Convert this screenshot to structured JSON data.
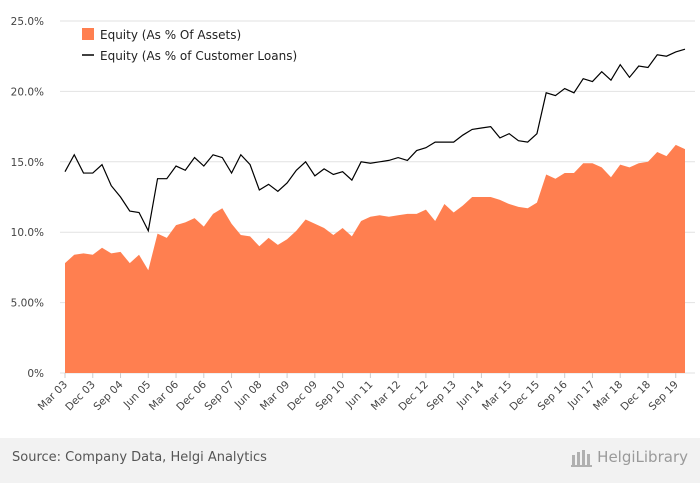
{
  "chart_data": {
    "type": "area",
    "y_ticks": [
      "0%",
      "5.00%",
      "10.0%",
      "15.0%",
      "20.0%",
      "25.0%"
    ],
    "y_tick_values": [
      0,
      5,
      10,
      15,
      20,
      25
    ],
    "ylim": [
      0,
      25
    ],
    "grid": true,
    "legend_position": "top-left",
    "x_tick_labels": [
      "Mar 03",
      "Dec 03",
      "Sep 04",
      "Jun 05",
      "Mar 06",
      "Dec 06",
      "Sep 07",
      "Jun 08",
      "Mar 09",
      "Dec 09",
      "Sep 10",
      "Jun 11",
      "Mar 12",
      "Dec 12",
      "Sep 13",
      "Jun 14",
      "Mar 15",
      "Dec 15",
      "Sep 16",
      "Jun 17",
      "Mar 18",
      "Dec 18",
      "Sep 19"
    ],
    "x": [
      "Mar 03",
      "Jun 03",
      "Sep 03",
      "Dec 03",
      "Mar 04",
      "Jun 04",
      "Sep 04",
      "Dec 04",
      "Mar 05",
      "Jun 05",
      "Sep 05",
      "Dec 05",
      "Mar 06",
      "Jun 06",
      "Sep 06",
      "Dec 06",
      "Mar 07",
      "Jun 07",
      "Sep 07",
      "Dec 07",
      "Mar 08",
      "Jun 08",
      "Sep 08",
      "Dec 08",
      "Mar 09",
      "Jun 09",
      "Sep 09",
      "Dec 09",
      "Mar 10",
      "Jun 10",
      "Sep 10",
      "Dec 10",
      "Mar 11",
      "Jun 11",
      "Sep 11",
      "Dec 11",
      "Mar 12",
      "Jun 12",
      "Sep 12",
      "Dec 12",
      "Mar 13",
      "Jun 13",
      "Sep 13",
      "Dec 13",
      "Mar 14",
      "Jun 14",
      "Sep 14",
      "Dec 14",
      "Mar 15",
      "Jun 15",
      "Sep 15",
      "Dec 15",
      "Mar 16",
      "Jun 16",
      "Sep 16",
      "Dec 16",
      "Mar 17",
      "Jun 17",
      "Sep 17",
      "Dec 17",
      "Mar 18",
      "Jun 18",
      "Sep 18",
      "Dec 18",
      "Mar 19",
      "Jun 19",
      "Sep 19",
      "Dec 19"
    ],
    "series": [
      {
        "name": "Equity (As % Of Assets)",
        "type": "area",
        "color": "#ff7f50",
        "values": [
          7.8,
          8.4,
          8.5,
          8.4,
          8.9,
          8.5,
          8.6,
          7.8,
          8.4,
          7.3,
          9.9,
          9.6,
          10.5,
          10.7,
          11.0,
          10.4,
          11.3,
          11.7,
          10.6,
          9.8,
          9.7,
          9.0,
          9.6,
          9.1,
          9.5,
          10.1,
          10.9,
          10.6,
          10.3,
          9.8,
          10.3,
          9.7,
          10.8,
          11.1,
          11.2,
          11.1,
          11.2,
          11.3,
          11.3,
          11.6,
          10.8,
          12.0,
          11.4,
          11.9,
          12.5,
          12.5,
          12.5,
          12.3,
          12.0,
          11.8,
          11.7,
          12.1,
          14.1,
          13.8,
          14.2,
          14.2,
          14.9,
          14.9,
          14.6,
          13.9,
          14.8,
          14.6,
          14.9,
          15.0,
          15.7,
          15.4,
          16.2,
          15.9
        ]
      },
      {
        "name": "Equity (As % of Customer Loans)",
        "type": "line",
        "color": "#000000",
        "values": [
          14.3,
          15.5,
          14.2,
          14.2,
          14.8,
          13.3,
          12.5,
          11.5,
          11.4,
          10.1,
          13.8,
          13.8,
          14.7,
          14.4,
          15.3,
          14.7,
          15.5,
          15.3,
          14.2,
          15.5,
          14.8,
          13.0,
          13.4,
          12.9,
          13.5,
          14.4,
          15.0,
          14.0,
          14.5,
          14.1,
          14.3,
          13.7,
          15.0,
          14.9,
          15.0,
          15.1,
          15.3,
          15.1,
          15.8,
          16.0,
          16.4,
          16.4,
          16.4,
          16.9,
          17.3,
          17.4,
          17.5,
          16.7,
          17.0,
          16.5,
          16.4,
          17.0,
          19.9,
          19.7,
          20.2,
          19.9,
          20.9,
          20.7,
          21.4,
          20.8,
          21.9,
          21.0,
          21.8,
          21.7,
          22.6,
          22.5,
          22.8,
          23.0
        ]
      }
    ]
  },
  "footer": {
    "source": "Source: Company Data, Helgi Analytics",
    "logo_text": "HelgiLibrary"
  }
}
